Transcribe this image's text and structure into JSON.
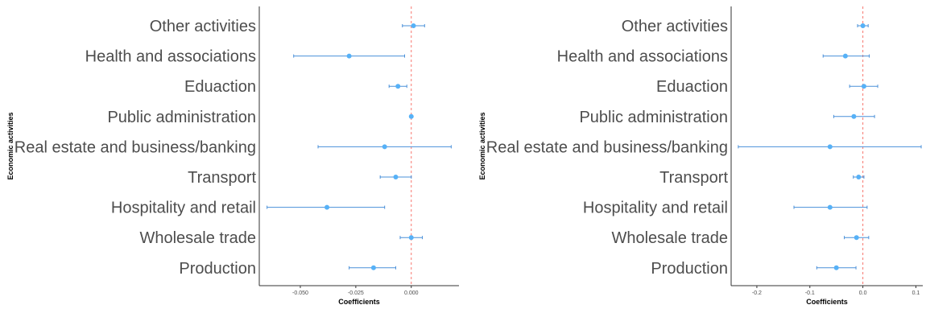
{
  "colors": {
    "point": "#56B1F7",
    "line": "#4A90D9",
    "zero_line": "#F8766D",
    "axis": "#333333",
    "text": "#4d4d4d"
  },
  "chart_data": [
    {
      "type": "scatter",
      "variant": "coefficient-plot",
      "title": "",
      "xlabel": "Coefficients",
      "ylabel": "Economic activities",
      "categories": [
        "Other activities",
        "Health and associations",
        "Eduaction",
        "Public administration",
        "Real estate and business/banking",
        "Transport",
        "Hospitality and retail",
        "Wholesale trade",
        "Production"
      ],
      "estimates": [
        0.001,
        -0.028,
        -0.006,
        0.0,
        -0.012,
        -0.007,
        -0.038,
        0.0,
        -0.017
      ],
      "ci_low": [
        -0.004,
        -0.053,
        -0.01,
        -0.0005,
        -0.042,
        -0.014,
        -0.065,
        -0.005,
        -0.028
      ],
      "ci_high": [
        0.006,
        -0.003,
        -0.002,
        0.0005,
        0.018,
        0.0,
        -0.012,
        0.005,
        -0.007
      ],
      "xlim": [
        -0.0685,
        0.0215
      ],
      "xticks": [
        -0.05,
        -0.025,
        0.0
      ],
      "xtick_labels": [
        "-0.050",
        "-0.025",
        "0.000"
      ],
      "reference_line": 0,
      "grid": false
    },
    {
      "type": "scatter",
      "variant": "coefficient-plot",
      "title": "",
      "xlabel": "Coefficients",
      "ylabel": "Economic activities",
      "categories": [
        "Other activities",
        "Health and associations",
        "Eduaction",
        "Public administration",
        "Real estate and business/banking",
        "Transport",
        "Hospitality and retail",
        "Wholesale trade",
        "Production"
      ],
      "estimates": [
        0.0,
        -0.033,
        0.002,
        -0.017,
        -0.062,
        -0.008,
        -0.062,
        -0.012,
        -0.05
      ],
      "ci_low": [
        -0.01,
        -0.075,
        -0.025,
        -0.055,
        -0.235,
        -0.018,
        -0.13,
        -0.035,
        -0.087
      ],
      "ci_high": [
        0.01,
        0.012,
        0.028,
        0.022,
        0.11,
        0.002,
        0.008,
        0.011,
        -0.013
      ],
      "xlim": [
        -0.2485,
        0.113
      ],
      "xticks": [
        -0.2,
        -0.1,
        0.0,
        0.1
      ],
      "xtick_labels": [
        "-0.2",
        "-0.1",
        "0.0",
        "0.1"
      ],
      "reference_line": 0,
      "grid": false
    }
  ]
}
